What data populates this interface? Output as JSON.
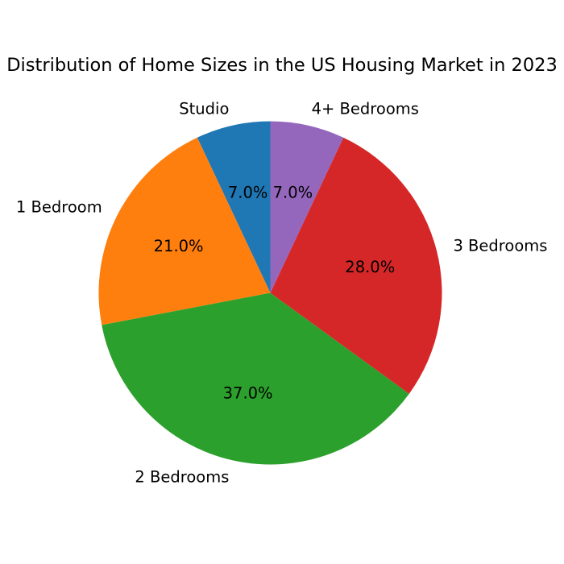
{
  "chart_data": {
    "type": "pie",
    "title": "Distribution of Home Sizes in the US Housing Market in 2023",
    "categories": [
      "Studio",
      "1 Bedroom",
      "2 Bedrooms",
      "3 Bedrooms",
      "4+ Bedrooms"
    ],
    "values": [
      7.0,
      21.0,
      37.0,
      28.0,
      7.0
    ],
    "value_labels": [
      "7.0%",
      "21.0%",
      "37.0%",
      "28.0%",
      "7.0%"
    ],
    "colors": [
      "#1f77b4",
      "#ff7f0e",
      "#2ca02c",
      "#d62728",
      "#9467bd"
    ],
    "start_angle_deg": 90,
    "direction": "counterclockwise",
    "legend": "none"
  }
}
